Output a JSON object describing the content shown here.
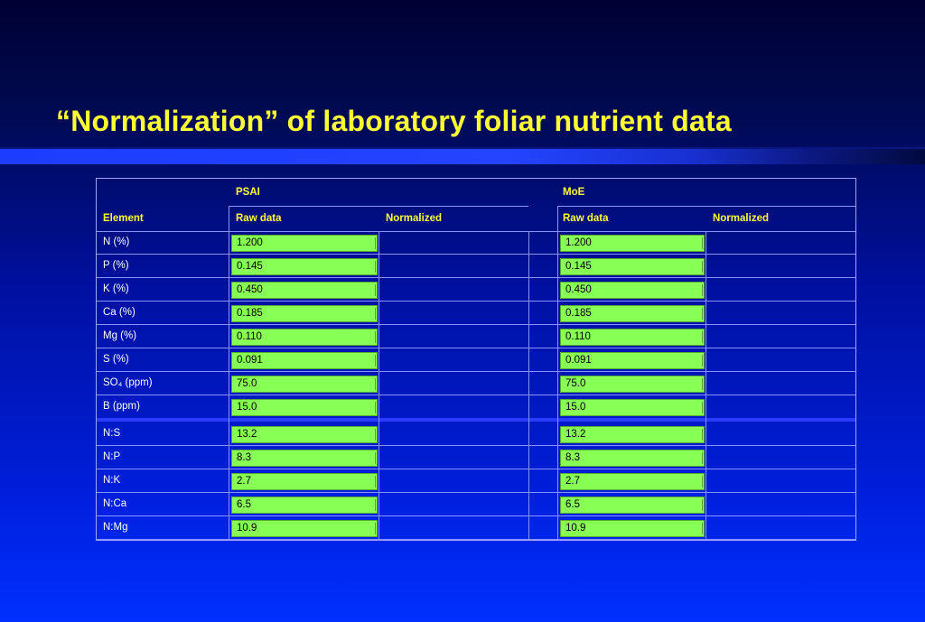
{
  "title": "“Normalization” of laboratory foliar nutrient data",
  "table": {
    "group_headers": [
      "PSAI",
      "MoE"
    ],
    "element_header": "Element",
    "sub_headers": [
      "Raw data",
      "Normalized",
      "Raw data",
      "Normalized"
    ],
    "rows": [
      {
        "element": "N (%)",
        "psai_raw": "1.200",
        "moe_raw": "1.200"
      },
      {
        "element": "P (%)",
        "psai_raw": "0.145",
        "moe_raw": "0.145"
      },
      {
        "element": "K (%)",
        "psai_raw": "0.450",
        "moe_raw": "0.450"
      },
      {
        "element": "Ca (%)",
        "psai_raw": "0.185",
        "moe_raw": "0.185"
      },
      {
        "element": "Mg (%)",
        "psai_raw": "0.110",
        "moe_raw": "0.110"
      },
      {
        "element": "S (%)",
        "psai_raw": "0.091",
        "moe_raw": "0.091"
      },
      {
        "element": "SO₄ (ppm)",
        "psai_raw": "75.0",
        "moe_raw": "75.0"
      },
      {
        "element": "B (ppm)",
        "psai_raw": "15.0",
        "moe_raw": "15.0"
      }
    ],
    "ratio_rows": [
      {
        "element": "N:S",
        "psai_raw": "13.2",
        "moe_raw": "13.2"
      },
      {
        "element": "N:P",
        "psai_raw": "8.3",
        "moe_raw": "8.3"
      },
      {
        "element": "N:K",
        "psai_raw": "2.7",
        "moe_raw": "2.7"
      },
      {
        "element": "N:Ca",
        "psai_raw": "6.5",
        "moe_raw": "6.5"
      },
      {
        "element": "N:Mg",
        "psai_raw": "10.9",
        "moe_raw": "10.9"
      }
    ]
  },
  "colors": {
    "title": "#ffff33",
    "header_text": "#ffff33",
    "raw_cell": "#88ff55",
    "background": "#0020e0"
  }
}
